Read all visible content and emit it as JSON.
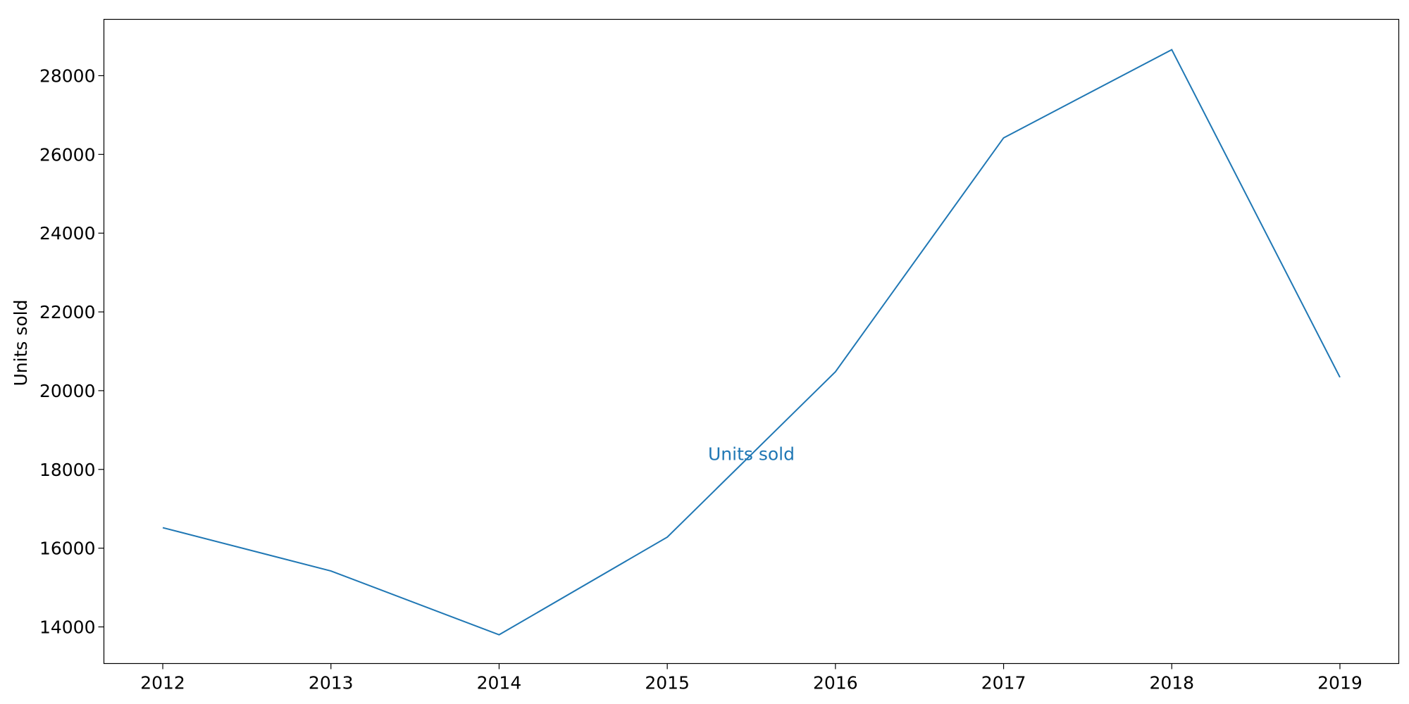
{
  "chart_data": {
    "type": "line",
    "title": "",
    "xlabel": "",
    "ylabel": "Units sold",
    "x": [
      "2012",
      "2013",
      "2014",
      "2015",
      "2016",
      "2017",
      "2018",
      "2019"
    ],
    "series": [
      {
        "name": "Units sold",
        "values": [
          16520,
          15420,
          13800,
          16280,
          20480,
          26420,
          28660,
          20340
        ],
        "color": "#1f77b4"
      }
    ],
    "ylim": [
      13070,
      29430
    ],
    "yticks": [
      14000,
      16000,
      18000,
      20000,
      22000,
      24000,
      26000,
      28000
    ],
    "grid": false,
    "annotation": {
      "text": "Units sold",
      "x": 2015.5,
      "y": 18400
    }
  }
}
